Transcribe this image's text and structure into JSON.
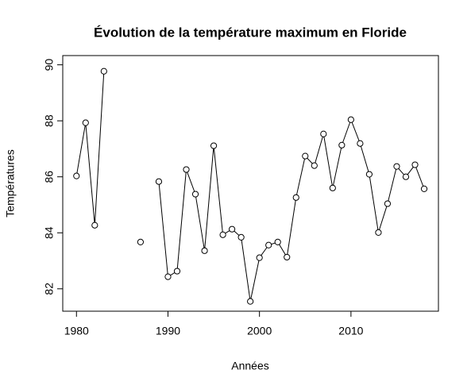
{
  "chart_data": {
    "type": "line",
    "title": "Évolution de la température maximum en Floride",
    "x_label": "Années",
    "y_label": "Températures",
    "x": [
      1980,
      1981,
      1982,
      1983,
      1984,
      1985,
      1986,
      1987,
      1988,
      1989,
      1990,
      1991,
      1992,
      1993,
      1994,
      1995,
      1996,
      1997,
      1998,
      1999,
      2000,
      2001,
      2002,
      2003,
      2004,
      2005,
      2006,
      2007,
      2008,
      2009,
      2010,
      2011,
      2012,
      2013,
      2014,
      2015,
      2016,
      2017,
      2018
    ],
    "series": [
      {
        "color": "#000000",
        "values": [
          86.03,
          87.93,
          84.27,
          89.77,
          null,
          null,
          null,
          83.67,
          null,
          85.83,
          82.43,
          82.63,
          86.26,
          85.38,
          83.36,
          87.11,
          83.93,
          84.13,
          83.84,
          81.55,
          83.11,
          83.56,
          83.67,
          83.13,
          85.26,
          86.74,
          86.4,
          87.53,
          85.6,
          87.13,
          88.04,
          87.19,
          86.09,
          84.01,
          85.04,
          86.37,
          86.0,
          86.43,
          85.57
        ]
      }
    ],
    "xlim": [
      1978.5,
      2019.56
    ],
    "ylim": [
      81.2,
      90.33
    ],
    "xticks": [
      1980,
      1990,
      2000,
      2010
    ],
    "yticks": [
      82,
      84,
      86,
      88,
      90
    ],
    "grid": false
  }
}
